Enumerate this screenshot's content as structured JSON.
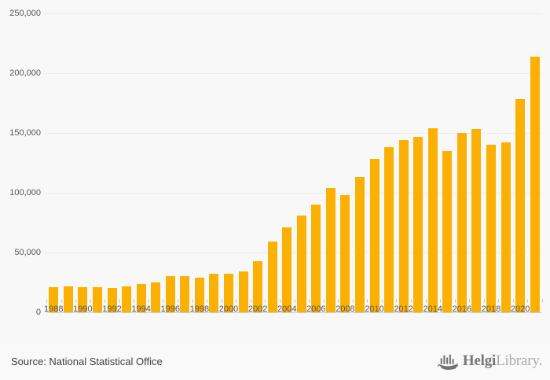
{
  "chart_data": {
    "type": "bar",
    "title": "",
    "xlabel": "",
    "ylabel": "",
    "categories": [
      1988,
      1989,
      1990,
      1991,
      1992,
      1993,
      1994,
      1995,
      1996,
      1997,
      1998,
      1999,
      2000,
      2001,
      2002,
      2003,
      2004,
      2005,
      2006,
      2007,
      2008,
      2009,
      2010,
      2011,
      2012,
      2013,
      2014,
      2015,
      2016,
      2017,
      2018,
      2019,
      2020,
      2021
    ],
    "values": [
      21000,
      22000,
      21000,
      21000,
      20500,
      21500,
      24000,
      25000,
      30500,
      30500,
      29000,
      32000,
      32000,
      34000,
      43000,
      59000,
      71000,
      81000,
      90000,
      104000,
      98000,
      113000,
      128000,
      138000,
      144000,
      147000,
      154000,
      135000,
      150000,
      153000,
      140000,
      142000,
      178000,
      214000
    ],
    "ylim": [
      0,
      250000
    ],
    "y_ticks": [
      {
        "value": 0,
        "label": "0"
      },
      {
        "value": 50000,
        "label": "50,000"
      },
      {
        "value": 100000,
        "label": "100,000"
      },
      {
        "value": 150000,
        "label": "150,000"
      },
      {
        "value": 200000,
        "label": "200,000"
      },
      {
        "value": 250000,
        "label": "250,000"
      }
    ],
    "x_tick_labels": [
      "1988",
      "1990",
      "1992",
      "1994",
      "1996",
      "1998",
      "2000",
      "2002",
      "2004",
      "2006",
      "2008",
      "2010",
      "2012",
      "2014",
      "2016",
      "2018",
      "2020"
    ],
    "grid": "horizontal",
    "legend": "none",
    "bar_color": "#fab104"
  },
  "footer": {
    "source": "Source: National Statistical Office",
    "logo": {
      "brand_bold": "Helgi",
      "brand_light": "Library."
    }
  },
  "colors": {
    "background": "#f8f8f8",
    "bar": "#fab104",
    "gridline": "#ececec",
    "axis": "#c6cde5",
    "tick_text": "#54565b"
  }
}
